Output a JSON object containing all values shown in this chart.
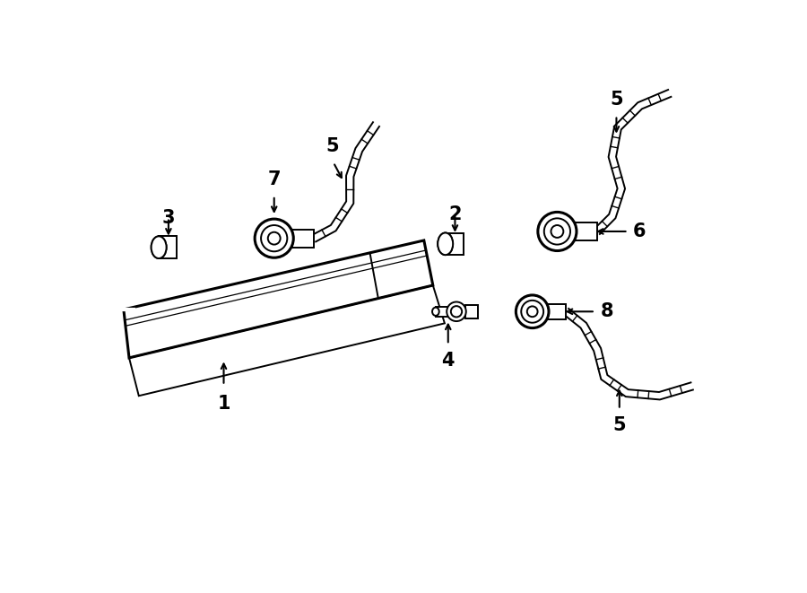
{
  "bg_color": "#ffffff",
  "lc": "#000000",
  "lw": 1.4,
  "blw": 2.2,
  "fig_w": 9.0,
  "fig_h": 6.61,
  "dpi": 100
}
